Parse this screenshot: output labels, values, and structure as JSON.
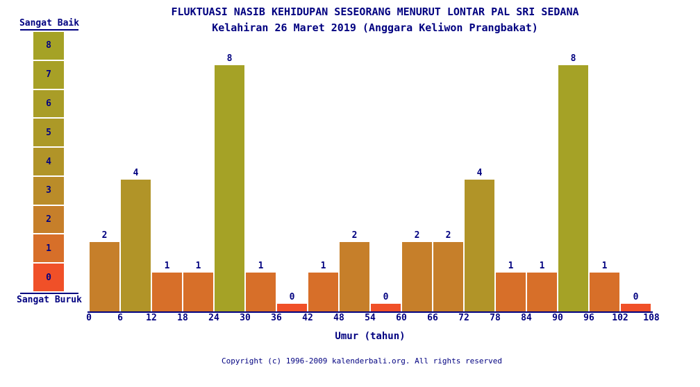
{
  "colors": {
    "text": "#000080",
    "background": "#ffffff"
  },
  "legend": {
    "top_label": "Sangat Baik",
    "bottom_label": "Sangat Buruk",
    "scale": [
      {
        "value": 8,
        "color": "#a5a226"
      },
      {
        "value": 7,
        "color": "#a7a026"
      },
      {
        "value": 6,
        "color": "#a99d27"
      },
      {
        "value": 5,
        "color": "#ac9927"
      },
      {
        "value": 4,
        "color": "#b19428"
      },
      {
        "value": 3,
        "color": "#ba8c29"
      },
      {
        "value": 2,
        "color": "#c67f2a"
      },
      {
        "value": 1,
        "color": "#d76f29"
      },
      {
        "value": 0,
        "color": "#f05028"
      }
    ]
  },
  "chart_data": {
    "type": "bar",
    "title": "FLUKTUASI NASIB KEHIDUPAN SESEORANG MENURUT LONTAR PAL SRI SEDANA",
    "subtitle": "Kelahiran 26 Maret 2019 (Anggara Keliwon Prangbakat)",
    "xlabel": "Umur (tahun)",
    "ylabel": "",
    "ylim": [
      0,
      8
    ],
    "x_bin_size": 6,
    "x_ticks": [
      0,
      6,
      12,
      18,
      24,
      30,
      36,
      42,
      48,
      54,
      60,
      66,
      72,
      78,
      84,
      90,
      96,
      102,
      108
    ],
    "categories": [
      "0-6",
      "6-12",
      "12-18",
      "18-24",
      "24-30",
      "30-36",
      "36-42",
      "42-48",
      "48-54",
      "54-60",
      "60-66",
      "66-72",
      "72-78",
      "78-84",
      "84-90",
      "90-96",
      "96-102",
      "102-108"
    ],
    "values": [
      2,
      4,
      1,
      1,
      8,
      1,
      0,
      1,
      2,
      0,
      2,
      2,
      4,
      1,
      1,
      8,
      1,
      0
    ],
    "grid": false,
    "legend_position": "left"
  },
  "footer": {
    "copyright": "Copyright (c) 1996-2009 kalenderbali.org. All rights reserved"
  }
}
